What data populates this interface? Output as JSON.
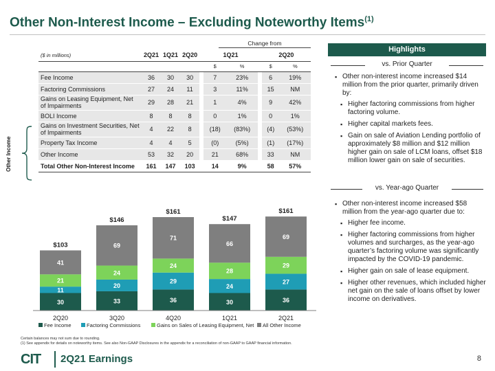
{
  "title": "Other Non-Interest Income – Excluding Noteworthy Items",
  "title_sup": "(1)",
  "table": {
    "change_from": "Change from",
    "units": "($ in millions)",
    "headers": [
      "2Q21",
      "1Q21",
      "2Q20",
      "1Q21",
      "2Q20"
    ],
    "sub_headers": [
      "$",
      "%",
      "$",
      "%"
    ],
    "rows": [
      {
        "label": "Fee Income",
        "v": [
          "36",
          "30",
          "30",
          "7",
          "23%",
          "6",
          "19%"
        ]
      },
      {
        "label": "Factoring Commissions",
        "v": [
          "27",
          "24",
          "11",
          "3",
          "11%",
          "15",
          "NM"
        ]
      },
      {
        "label": "Gains on Leasing Equipment, Net of Impairments",
        "v": [
          "29",
          "28",
          "21",
          "1",
          "4%",
          "9",
          "42%"
        ]
      },
      {
        "label": "BOLI Income",
        "v": [
          "8",
          "8",
          "8",
          "0",
          "1%",
          "0",
          "1%"
        ]
      },
      {
        "label": "Gains on Investment Securities, Net of Impairments",
        "v": [
          "4",
          "22",
          "8",
          "(18)",
          "(83%)",
          "(4)",
          "(53%)"
        ]
      },
      {
        "label": "Property Tax Income",
        "v": [
          "4",
          "4",
          "5",
          "(0)",
          "(5%)",
          "(1)",
          "(17%)"
        ]
      },
      {
        "label": "Other Income",
        "v": [
          "53",
          "32",
          "20",
          "21",
          "68%",
          "33",
          "NM"
        ]
      }
    ],
    "total": {
      "label": "Total Other Non-Interest Income",
      "v": [
        "161",
        "147",
        "103",
        "14",
        "9%",
        "58",
        "57%"
      ]
    }
  },
  "other_income_label": "Other Income",
  "chart_data": {
    "type": "bar",
    "stacked": true,
    "categories": [
      "2Q20",
      "3Q20",
      "4Q20",
      "1Q21",
      "2Q21"
    ],
    "series": [
      {
        "name": "Fee Income",
        "color": "#1d5a4c",
        "values": [
          30,
          33,
          36,
          30,
          36
        ]
      },
      {
        "name": "Factoring Commissions",
        "color": "#1f9db5",
        "values": [
          11,
          20,
          29,
          24,
          27
        ]
      },
      {
        "name": "Gains on Sales of Leasing Equipment, Net",
        "color": "#7dd35a",
        "values": [
          21,
          24,
          24,
          28,
          29
        ]
      },
      {
        "name": "All Other Income",
        "color": "#7f7f7f",
        "values": [
          41,
          69,
          71,
          66,
          69
        ]
      }
    ],
    "totals": [
      "$103",
      "$146",
      "$161",
      "$147",
      "$161"
    ],
    "legend_position": "bottom"
  },
  "footnote_1": "Certain balances may not sum due to rounding.",
  "footnote_2": "(1)   See appendix for details on noteworthy items. See also Non-GAAP Disclosures in the appendix for a reconciliation of non-GAAP to GAAP financial information.",
  "highlights": {
    "header": "Highlights",
    "vs_prior": "vs. Prior Quarter",
    "prior_main": "Other non-interest income increased $14 million from the prior quarter, primarily driven by:",
    "prior_subs": [
      "Higher factoring commissions from higher factoring volume.",
      "Higher capital markets fees.",
      "Gain on sale of Aviation Lending portfolio of approximately $8 million and $12 million higher gain on sale of LCM loans, offset $18 million lower gain on sale of securities."
    ],
    "vs_year": "vs. Year-ago Quarter",
    "year_main": "Other non-interest income increased $58 million from the year-ago quarter due to:",
    "year_subs": [
      "Higher fee income.",
      "Higher factoring commissions from higher volumes and surcharges, as the year-ago quarter’s factoring volume was significantly impacted by the COVID-19 pandemic.",
      "Higher gain on sale of lease equipment.",
      "Higher other revenues, which included higher net gain on the sale of loans offset by lower income on derivatives."
    ]
  },
  "footer": {
    "logo": "CIT",
    "text": "2Q21 Earnings",
    "page": "8"
  }
}
